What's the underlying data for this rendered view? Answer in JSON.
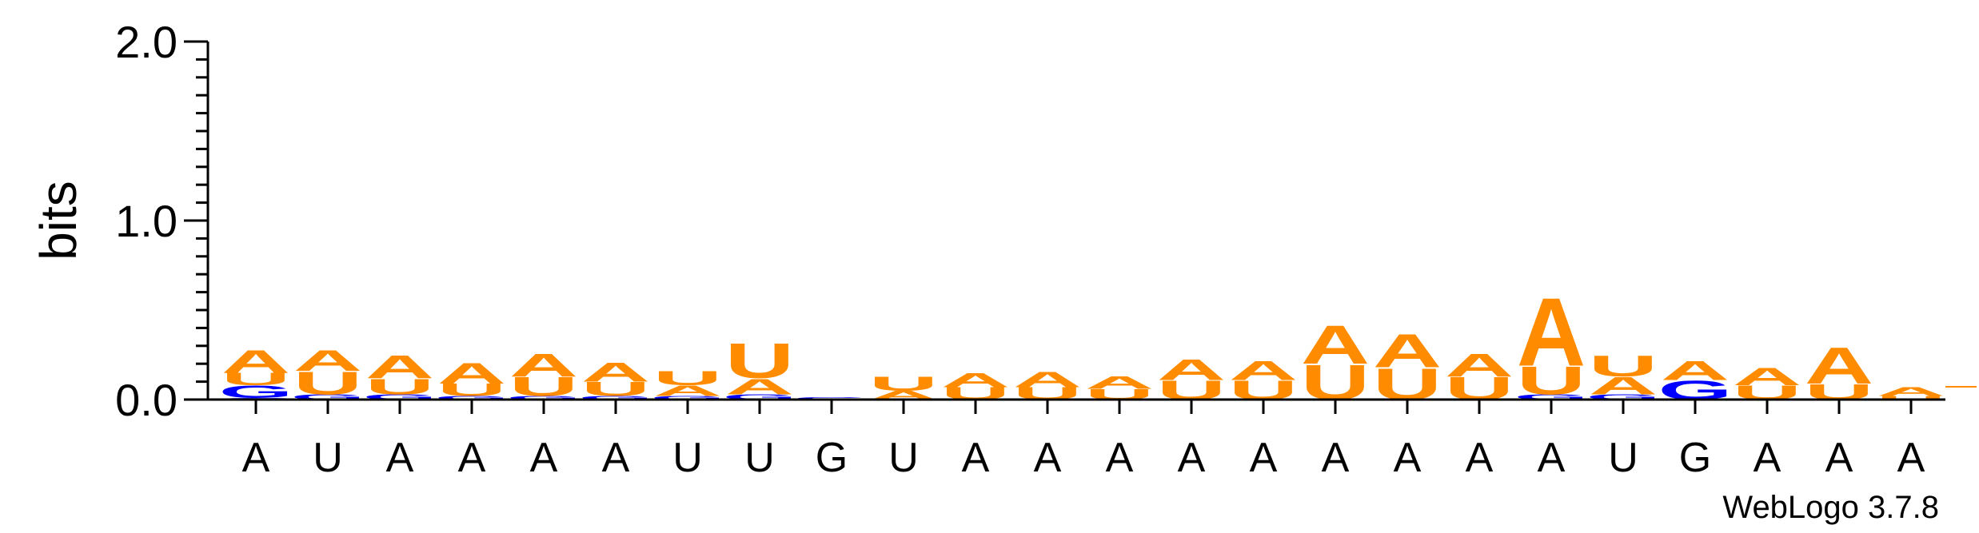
{
  "chart_data": {
    "type": "sequence-logo",
    "ylabel": "bits",
    "ylim": [
      0,
      2.0
    ],
    "yticks": [
      "0.0",
      "1.0",
      "2.0"
    ],
    "colors": {
      "A": "#ff8c00",
      "U": "#ff8c00",
      "G": "#0000ff",
      "C": "#0000ff"
    },
    "positions": [
      {
        "x": "A",
        "stack": [
          [
            "C",
            0.01
          ],
          [
            "G",
            0.07
          ],
          [
            "U",
            0.07
          ],
          [
            "A",
            0.13
          ]
        ]
      },
      {
        "x": "U",
        "stack": [
          [
            "G",
            0.03
          ],
          [
            "U",
            0.13
          ],
          [
            "A",
            0.12
          ]
        ]
      },
      {
        "x": "A",
        "stack": [
          [
            "G",
            0.03
          ],
          [
            "U",
            0.09
          ],
          [
            "A",
            0.13
          ]
        ]
      },
      {
        "x": "A",
        "stack": [
          [
            "G",
            0.02
          ],
          [
            "U",
            0.07
          ],
          [
            "A",
            0.12
          ]
        ]
      },
      {
        "x": "A",
        "stack": [
          [
            "G",
            0.02
          ],
          [
            "U",
            0.11
          ],
          [
            "A",
            0.13
          ]
        ]
      },
      {
        "x": "A",
        "stack": [
          [
            "G",
            0.02
          ],
          [
            "U",
            0.08
          ],
          [
            "A",
            0.11
          ]
        ]
      },
      {
        "x": "U",
        "stack": [
          [
            "G",
            0.02
          ],
          [
            "A",
            0.06
          ],
          [
            "U",
            0.08
          ]
        ]
      },
      {
        "x": "U",
        "stack": [
          [
            "G",
            0.03
          ],
          [
            "A",
            0.09
          ],
          [
            "U",
            0.2
          ]
        ]
      },
      {
        "x": "G",
        "stack": [
          [
            "G",
            0.015
          ]
        ]
      },
      {
        "x": "U",
        "stack": [
          [
            "A",
            0.05
          ],
          [
            "U",
            0.08
          ]
        ]
      },
      {
        "x": "A",
        "stack": [
          [
            "U",
            0.07
          ],
          [
            "A",
            0.08
          ]
        ]
      },
      {
        "x": "A",
        "stack": [
          [
            "U",
            0.07
          ],
          [
            "A",
            0.09
          ]
        ]
      },
      {
        "x": "A",
        "stack": [
          [
            "U",
            0.06
          ],
          [
            "A",
            0.07
          ]
        ]
      },
      {
        "x": "A",
        "stack": [
          [
            "U",
            0.11
          ],
          [
            "A",
            0.12
          ]
        ]
      },
      {
        "x": "A",
        "stack": [
          [
            "U",
            0.11
          ],
          [
            "A",
            0.11
          ]
        ]
      },
      {
        "x": "A",
        "stack": [
          [
            "U",
            0.2
          ],
          [
            "A",
            0.22
          ]
        ]
      },
      {
        "x": "A",
        "stack": [
          [
            "U",
            0.18
          ],
          [
            "A",
            0.19
          ]
        ]
      },
      {
        "x": "A",
        "stack": [
          [
            "U",
            0.13
          ],
          [
            "A",
            0.13
          ]
        ]
      },
      {
        "x": "A",
        "stack": [
          [
            "G",
            0.03
          ],
          [
            "U",
            0.16
          ],
          [
            "A",
            0.39
          ]
        ]
      },
      {
        "x": "U",
        "stack": [
          [
            "G",
            0.03
          ],
          [
            "A",
            0.1
          ],
          [
            "U",
            0.12
          ]
        ]
      },
      {
        "x": "G",
        "stack": [
          [
            "G",
            0.11
          ],
          [
            "A",
            0.11
          ]
        ]
      },
      {
        "x": "A",
        "stack": [
          [
            "U",
            0.08
          ],
          [
            "A",
            0.1
          ]
        ]
      },
      {
        "x": "A",
        "stack": [
          [
            "U",
            0.09
          ],
          [
            "A",
            0.21
          ]
        ]
      },
      {
        "x": "A",
        "stack": [
          [
            "U",
            0.02
          ],
          [
            "A",
            0.05
          ]
        ]
      }
    ],
    "credit": "WebLogo 3.7.8"
  }
}
